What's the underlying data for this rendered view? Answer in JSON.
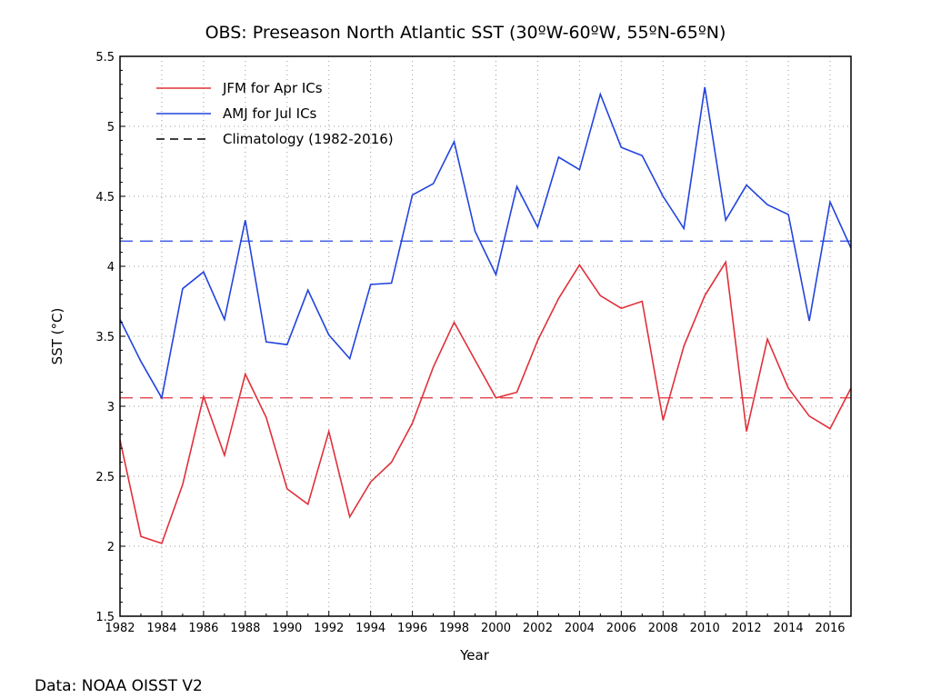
{
  "chart_data": {
    "type": "line",
    "title": "OBS: Preseason North Atlantic SST (30ºW-60ºW, 55ºN-65ºN)",
    "xlabel": "Year",
    "ylabel": "SST (°C)",
    "xlim": [
      1982,
      2017
    ],
    "ylim": [
      1.5,
      5.5
    ],
    "xticks": [
      1982,
      1984,
      1986,
      1988,
      1990,
      1992,
      1994,
      1996,
      1998,
      2000,
      2002,
      2004,
      2006,
      2008,
      2010,
      2012,
      2014,
      2016
    ],
    "yticks": [
      1.5,
      2,
      2.5,
      3,
      3.5,
      4,
      4.5,
      5,
      5.5
    ],
    "ytick_labels": [
      "1.5",
      "2",
      "2.5",
      "3",
      "3.5",
      "4",
      "4.5",
      "5",
      "5.5"
    ],
    "grid": true,
    "legend_position": "top-left",
    "x": [
      1982,
      1983,
      1984,
      1985,
      1986,
      1987,
      1988,
      1989,
      1990,
      1991,
      1992,
      1993,
      1994,
      1995,
      1996,
      1997,
      1998,
      1999,
      2000,
      2001,
      2002,
      2003,
      2004,
      2005,
      2006,
      2007,
      2008,
      2009,
      2010,
      2011,
      2012,
      2013,
      2014,
      2015,
      2016,
      2017
    ],
    "series": [
      {
        "name": "JFM for Apr ICs",
        "color": "#e0303a",
        "values": [
          2.76,
          2.07,
          2.02,
          2.44,
          3.07,
          2.65,
          3.23,
          2.92,
          2.41,
          2.3,
          2.82,
          2.21,
          2.46,
          2.6,
          2.88,
          3.28,
          3.6,
          3.33,
          3.06,
          3.1,
          3.47,
          3.77,
          4.01,
          3.79,
          3.7,
          3.75,
          2.9,
          3.43,
          3.79,
          4.03,
          2.82,
          3.48,
          3.13,
          2.93,
          2.84,
          3.13
        ]
      },
      {
        "name": "AMJ for Jul ICs",
        "color": "#2244dd",
        "values": [
          3.62,
          3.32,
          3.06,
          3.84,
          3.96,
          3.62,
          4.33,
          3.46,
          3.44,
          3.83,
          3.51,
          3.34,
          3.87,
          3.88,
          4.51,
          4.59,
          4.89,
          4.25,
          3.94,
          4.57,
          4.28,
          4.78,
          4.69,
          5.23,
          4.85,
          4.79,
          4.5,
          4.27,
          5.28,
          4.33,
          4.58,
          4.44,
          4.37,
          3.61,
          4.46,
          4.13
        ]
      }
    ],
    "climatology": [
      {
        "name": "Climatology (1982-2016)",
        "color": "#000000",
        "style": "dashed"
      },
      {
        "series": "JFM for Apr ICs",
        "value": 3.06,
        "color": "#e0303a",
        "style": "dashed"
      },
      {
        "series": "AMJ for Jul ICs",
        "value": 4.18,
        "color": "#2244dd",
        "style": "dashed"
      }
    ]
  },
  "footer": {
    "source": "Data: NOAA OISST V2"
  }
}
